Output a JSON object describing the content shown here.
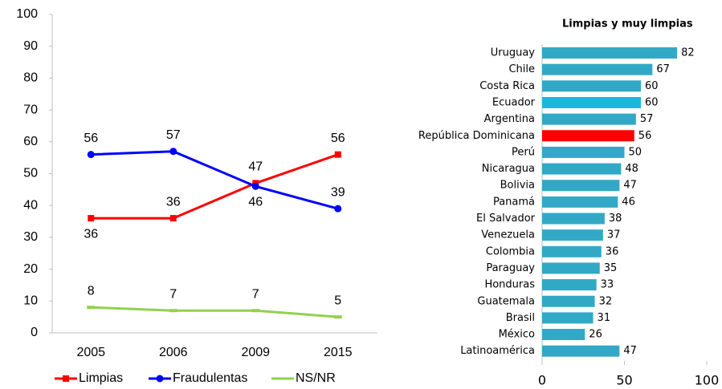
{
  "chart_data": [
    {
      "type": "line",
      "categories": [
        "2005",
        "2006",
        "2009",
        "2015"
      ],
      "series": [
        {
          "name": "Limpias",
          "color": "#ff0000",
          "values": [
            36,
            36,
            47,
            56
          ]
        },
        {
          "name": "Fraudulentas",
          "color": "#0000ff",
          "values": [
            56,
            57,
            46,
            39
          ]
        },
        {
          "name": "NS/NR",
          "color": "#92d050",
          "values": [
            8,
            7,
            7,
            5
          ]
        }
      ],
      "ylim": [
        0,
        100
      ],
      "yticks": [
        0,
        10,
        20,
        30,
        40,
        50,
        60,
        70,
        80,
        90,
        100
      ],
      "legend": "bottom"
    },
    {
      "type": "bar",
      "title": "Limpias y muy limpias",
      "categories": [
        "Uruguay",
        "Chile",
        "Costa Rica",
        "Ecuador",
        "Argentina",
        "República Dominicana",
        "Perú",
        "Nicaragua",
        "Bolivia",
        "Panamá",
        "El Salvador",
        "Venezuela",
        "Colombia",
        "Paraguay",
        "Honduras",
        "Guatemala",
        "Brasil",
        "México",
        "Latinoamérica"
      ],
      "values": [
        82,
        67,
        60,
        60,
        57,
        56,
        50,
        48,
        47,
        46,
        38,
        37,
        36,
        35,
        33,
        32,
        31,
        26,
        47
      ],
      "colors": [
        "#31a9c6",
        "#31a9c6",
        "#31a9c6",
        "#1fb6dc",
        "#31a9c6",
        "#ff0000",
        "#31a9c6",
        "#31a9c6",
        "#31a9c6",
        "#31a9c6",
        "#31a9c6",
        "#31a9c6",
        "#31a9c6",
        "#31a9c6",
        "#31a9c6",
        "#31a9c6",
        "#31a9c6",
        "#31a9c6",
        "#31a9c6"
      ],
      "xlim": [
        0,
        100
      ],
      "xticks": [
        0,
        50,
        100
      ]
    }
  ]
}
